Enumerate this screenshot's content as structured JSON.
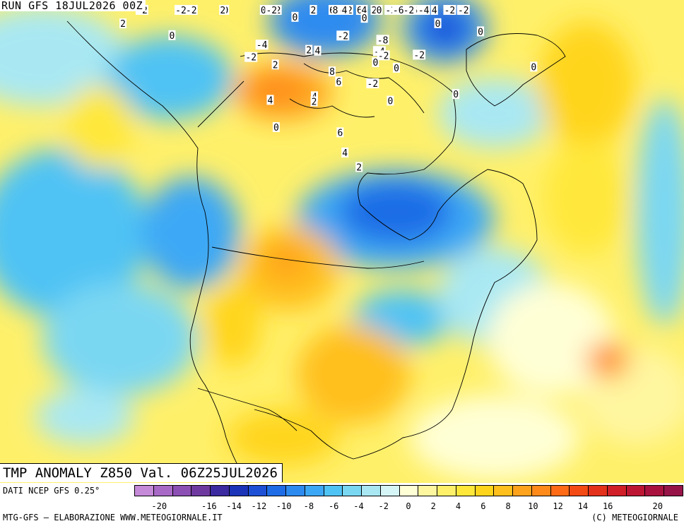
{
  "run": {
    "label": "RUN GFS 18JUL2026 00Z"
  },
  "title": {
    "label": "TMP ANOMALY Z850 Val. 06Z25JUL2026"
  },
  "footer": {
    "source": "DATI NCEP GFS 0.25°",
    "credits": "MTG-GFS — ELABORAZIONE WWW.METEOGIORNALE.IT",
    "copyright": "(C) METEOGIORNALE"
  },
  "colorbar": {
    "colors": [
      "#c58ad8",
      "#a86ac6",
      "#8c4fb4",
      "#6f3aa0",
      "#3b2aa0",
      "#1c35b8",
      "#1e50d6",
      "#1f6de6",
      "#2d8bf0",
      "#3ca8f5",
      "#4fc3f4",
      "#7ad7f2",
      "#a9e8f3",
      "#d6f5f6",
      "#ffffd6",
      "#fff6a0",
      "#fff06a",
      "#ffe83a",
      "#ffd51c",
      "#ffbf1c",
      "#ffa21c",
      "#ff8a1a",
      "#ff6a16",
      "#f44a14",
      "#e3311c",
      "#d01f28",
      "#bd1634",
      "#a9123e",
      "#971448"
    ],
    "ticks": [
      "-20",
      "-16",
      "-14",
      "-12",
      "-10",
      "-8",
      "-6",
      "-4",
      "-2",
      "0",
      "2",
      "4",
      "6",
      "8",
      "10",
      "12",
      "14",
      "16",
      "20"
    ]
  },
  "map_labels": [
    "-2",
    "-4",
    "-6",
    "-8",
    "0",
    "2",
    "4",
    "6",
    "8"
  ],
  "contour_labels": [
    {
      "text": "2",
      "lon": -108,
      "lat": 63
    },
    {
      "text": "-2",
      "lon": -95,
      "lat": 75
    },
    {
      "text": "-4",
      "lon": -85,
      "lat": 78
    },
    {
      "text": "-6",
      "lon": -84,
      "lat": 77
    },
    {
      "text": "2",
      "lon": -82,
      "lat": 74
    },
    {
      "text": "0",
      "lon": -80,
      "lat": 79
    },
    {
      "text": "6",
      "lon": -98,
      "lat": 72
    },
    {
      "text": "4",
      "lon": -88,
      "lat": 72
    },
    {
      "text": "8",
      "lon": -96,
      "lat": 67
    },
    {
      "text": "6",
      "lon": -82,
      "lat": 65
    },
    {
      "text": "4",
      "lon": -80,
      "lat": 64
    },
    {
      "text": "2",
      "lon": -76,
      "lat": 62
    },
    {
      "text": "6",
      "lon": -15,
      "lat": 72
    },
    {
      "text": "4",
      "lon": -25,
      "lat": 66
    },
    {
      "text": "0",
      "lon": -45,
      "lat": 76
    },
    {
      "text": "-2",
      "lon": -50,
      "lat": 71
    },
    {
      "text": "2",
      "lon": -42,
      "lat": 67
    },
    {
      "text": "-2",
      "lon": -62,
      "lat": 58
    },
    {
      "text": "-4",
      "lon": -57,
      "lat": 56
    },
    {
      "text": "-6",
      "lon": -70,
      "lat": 55
    },
    {
      "text": "0",
      "lon": -85,
      "lat": 54
    },
    {
      "text": "-2",
      "lon": -94,
      "lat": 51
    },
    {
      "text": "2",
      "lon": -106,
      "lat": 56
    },
    {
      "text": "-2",
      "lon": -126,
      "lat": 60
    },
    {
      "text": "0",
      "lon": -130,
      "lat": 58
    },
    {
      "text": "-2",
      "lon": -126,
      "lat": 58
    },
    {
      "text": "0",
      "lon": -113,
      "lat": 54
    },
    {
      "text": "0",
      "lon": -160,
      "lat": 62
    },
    {
      "text": "-2",
      "lon": -165,
      "lat": 55
    },
    {
      "text": "2",
      "lon": -145,
      "lat": 54
    },
    {
      "text": "-2",
      "lon": -151,
      "lat": 45
    },
    {
      "text": "2",
      "lon": -106,
      "lat": 48
    },
    {
      "text": "4",
      "lon": -103,
      "lat": 48
    },
    {
      "text": "-8",
      "lon": -80,
      "lat": 49
    },
    {
      "text": "-4",
      "lon": -82,
      "lat": 47
    },
    {
      "text": "-2",
      "lon": -81,
      "lat": 46
    },
    {
      "text": "0",
      "lon": -84,
      "lat": 45
    },
    {
      "text": "-4",
      "lon": -122,
      "lat": 47
    },
    {
      "text": "8",
      "lon": -98,
      "lat": 44
    },
    {
      "text": "-2",
      "lon": -124,
      "lat": 44
    },
    {
      "text": "2",
      "lon": -116,
      "lat": 44
    },
    {
      "text": "6",
      "lon": -96,
      "lat": 42
    },
    {
      "text": "-2",
      "lon": -86,
      "lat": 41
    },
    {
      "text": "0",
      "lon": -78,
      "lat": 43
    },
    {
      "text": "-2",
      "lon": -70,
      "lat": 44
    },
    {
      "text": "0",
      "lon": -60,
      "lat": 48
    },
    {
      "text": "-2",
      "lon": -48,
      "lat": 49
    },
    {
      "text": "-2",
      "lon": -45,
      "lat": 55
    },
    {
      "text": "0",
      "lon": -50,
      "lat": 42
    },
    {
      "text": "4",
      "lon": -103,
      "lat": 39
    },
    {
      "text": "2",
      "lon": -103,
      "lat": 38
    },
    {
      "text": "0",
      "lon": -82,
      "lat": 37
    },
    {
      "text": "4",
      "lon": -115,
      "lat": 37
    },
    {
      "text": "0",
      "lon": -65,
      "lat": 34
    },
    {
      "text": "6",
      "lon": -96,
      "lat": 32
    },
    {
      "text": "0",
      "lon": -112,
      "lat": 32
    },
    {
      "text": "4",
      "lon": -95,
      "lat": 28
    },
    {
      "text": "2",
      "lon": -92,
      "lat": 25
    },
    {
      "text": "0",
      "lon": -45,
      "lat": 30
    },
    {
      "text": "-2",
      "lon": -160,
      "lat": 40
    },
    {
      "text": "0",
      "lon": -148,
      "lat": 40
    },
    {
      "text": "2",
      "lon": -160,
      "lat": 35
    }
  ]
}
